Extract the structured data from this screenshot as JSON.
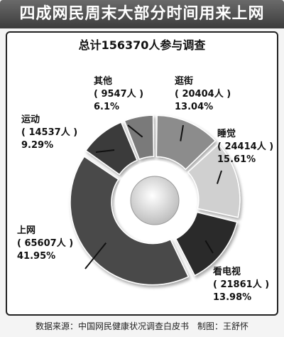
{
  "header": {
    "title": "四成网民周末大部分时间用来上网",
    "subtitle": "总计156370人参与调查"
  },
  "footer": {
    "source": "数据来源：中国网民健康状况调查白皮书",
    "maker": "制图：王舒怀"
  },
  "colors": {
    "title_bar": "#4a4a4a",
    "slices": [
      "#4a4a4a",
      "#3a3a3a",
      "#7a7a7a",
      "#8c8c8c",
      "#d0d0d0",
      "#2a2a2a"
    ]
  },
  "chart_data": {
    "type": "pie",
    "title": "四成网民周末大部分时间用来上网",
    "subtitle": "总计156370人参与调查",
    "slices": [
      {
        "name": "上网",
        "count": "65607人",
        "value": 41.95,
        "label_pct": "41.95%"
      },
      {
        "name": "运动",
        "count": "14537人",
        "value": 9.29,
        "label_pct": "9.29%"
      },
      {
        "name": "其他",
        "count": "9547人",
        "value": 6.1,
        "label_pct": "6.1%"
      },
      {
        "name": "逛街",
        "count": "20404人",
        "value": 13.04,
        "label_pct": "13.04%"
      },
      {
        "name": "睡觉",
        "count": "24414人",
        "value": 15.61,
        "label_pct": "15.61%"
      },
      {
        "name": "看电视",
        "count": "21861人",
        "value": 13.98,
        "label_pct": "13.98%"
      }
    ]
  }
}
